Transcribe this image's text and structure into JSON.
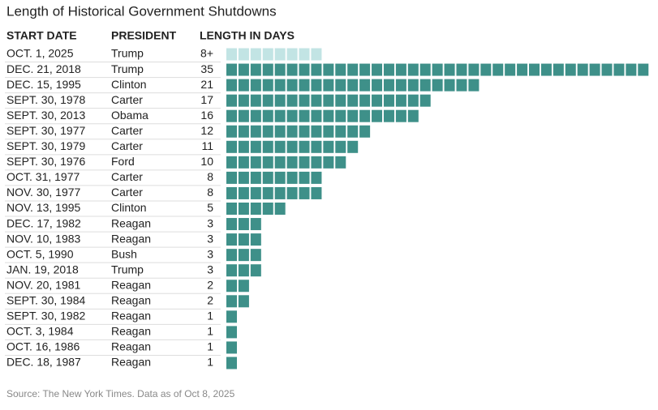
{
  "chart_data": {
    "type": "unit-bar",
    "title": "Length of Historical Government Shutdowns",
    "headers": [
      "START DATE",
      "PRESIDENT",
      "LENGTH IN DAYS"
    ],
    "categories": [
      "OCT. 1, 2025",
      "DEC. 21, 2018",
      "DEC. 15, 1995",
      "SEPT. 30, 1978",
      "SEPT. 30, 2013",
      "SEPT. 30, 1977",
      "SEPT. 30, 1979",
      "SEPT. 30, 1976",
      "OCT. 31, 1977",
      "NOV. 30, 1977",
      "NOV. 13, 1995",
      "DEC. 17, 1982",
      "NOV. 10, 1983",
      "OCT. 5, 1990",
      "JAN. 19, 2018",
      "NOV. 20, 1981",
      "SEPT. 30, 1984",
      "SEPT. 30, 1982",
      "OCT. 3, 1984",
      "OCT. 16, 1986",
      "DEC. 18, 1987"
    ],
    "presidents": [
      "Trump",
      "Trump",
      "Clinton",
      "Carter",
      "Obama",
      "Carter",
      "Carter",
      "Ford",
      "Carter",
      "Carter",
      "Clinton",
      "Reagan",
      "Reagan",
      "Bush",
      "Trump",
      "Reagan",
      "Reagan",
      "Reagan",
      "Reagan",
      "Reagan",
      "Reagan"
    ],
    "values": [
      8,
      35,
      21,
      17,
      16,
      12,
      11,
      10,
      8,
      8,
      5,
      3,
      3,
      3,
      3,
      2,
      2,
      1,
      1,
      1,
      1
    ],
    "value_labels": [
      "8+",
      "35",
      "21",
      "17",
      "16",
      "12",
      "11",
      "10",
      "8",
      "8",
      "5",
      "3",
      "3",
      "3",
      "3",
      "2",
      "2",
      "1",
      "1",
      "1",
      "1"
    ],
    "colors": [
      "#c2e4e4",
      "#3e9089",
      "#3e9089",
      "#3e9089",
      "#3e9089",
      "#3e9089",
      "#3e9089",
      "#3e9089",
      "#3e9089",
      "#3e9089",
      "#3e9089",
      "#3e9089",
      "#3e9089",
      "#3e9089",
      "#3e9089",
      "#3e9089",
      "#3e9089",
      "#3e9089",
      "#3e9089",
      "#3e9089",
      "#3e9089"
    ],
    "source": "Source: The New York Times. Data as of Oct 8, 2025"
  }
}
